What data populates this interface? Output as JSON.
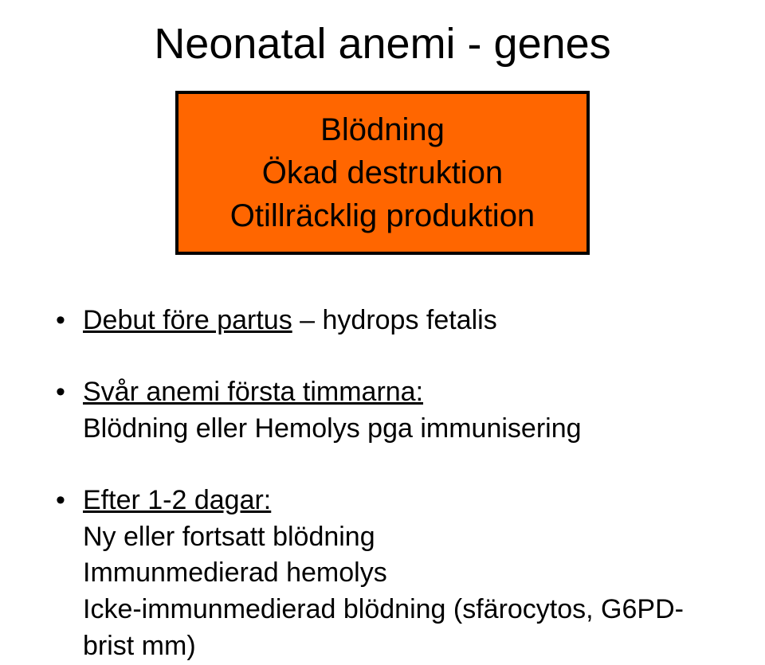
{
  "title": "Neonatal anemi - genes",
  "box": {
    "background": "#ff6600",
    "border": "#000000",
    "lines": [
      "Blödning",
      "Ökad destruktion",
      "Otillräcklig produktion"
    ]
  },
  "bullets": [
    {
      "lead_underlined": "Debut före partus",
      "lead_rest": " – hydrops fetalis",
      "sub": []
    },
    {
      "lead_underlined": "Svår anemi första timmarna:",
      "lead_rest": "",
      "sub": [
        "Blödning eller Hemolys pga immunisering"
      ]
    },
    {
      "lead_underlined": "Efter 1-2 dagar:",
      "lead_rest": "",
      "sub": [
        "Ny eller fortsatt blödning",
        "Immunmedierad hemolys",
        "Icke-immunmedierad blödning (sfärocytos, G6PD-brist mm)"
      ]
    }
  ]
}
